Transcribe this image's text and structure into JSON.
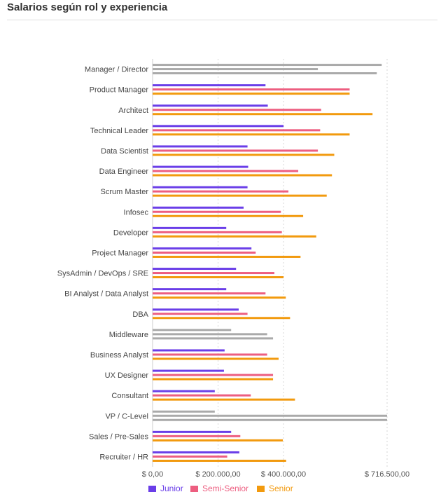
{
  "header": {
    "title": "Salarios según rol y experiencia"
  },
  "chart_data": {
    "type": "bar",
    "orientation": "horizontal",
    "title": "Salarios según rol y experiencia",
    "xlabel": "",
    "ylabel": "",
    "xlim": [
      0,
      716500
    ],
    "x_ticks": [
      {
        "value": 0,
        "label": "$ 0,00"
      },
      {
        "value": 200000,
        "label": "$ 200.000,00"
      },
      {
        "value": 400000,
        "label": "$ 400.000,00"
      },
      {
        "value": 716500,
        "label": "$ 716.500,00"
      }
    ],
    "grid": true,
    "legend": "bottom",
    "categories": [
      "Manager / Director",
      "Product Manager",
      "Architect",
      "Technical Leader",
      "Data Scientist",
      "Data Engineer",
      "Scrum Master",
      "Infosec",
      "Developer",
      "Project Manager",
      "SysAdmin / DevOps / SRE",
      "BI Analyst / Data Analyst",
      "DBA",
      "Middleware",
      "Business Analyst",
      "UX Designer",
      "Consultant",
      "VP / C-Level",
      "Sales / Pre-Sales",
      "Recruiter / HR"
    ],
    "series": [
      {
        "name": "Junior",
        "color": "#6a3ee8",
        "values": [
          700000,
          345000,
          352000,
          400000,
          290000,
          292000,
          290000,
          278000,
          225000,
          302000,
          255000,
          225000,
          263000,
          240000,
          220000,
          218000,
          190000,
          190000,
          240000,
          265000
        ]
      },
      {
        "name": "Semi-Senior",
        "color": "#ed5e80",
        "values": [
          505000,
          602000,
          515000,
          512000,
          505000,
          445000,
          415000,
          392000,
          395000,
          315000,
          372000,
          345000,
          290000,
          350000,
          350000,
          368000,
          300000,
          716500,
          268000,
          228000
        ]
      },
      {
        "name": "Senior",
        "color": "#f29a0e",
        "values": [
          685000,
          602000,
          672000,
          602000,
          555000,
          548000,
          532000,
          460000,
          500000,
          452000,
          400000,
          407000,
          420000,
          368000,
          385000,
          368000,
          435000,
          716500,
          398000,
          408000
        ]
      }
    ],
    "muted_categories": [
      "Manager / Director",
      "Middleware",
      "VP / C-Level"
    ],
    "muted_color": "#aaaaaa"
  }
}
